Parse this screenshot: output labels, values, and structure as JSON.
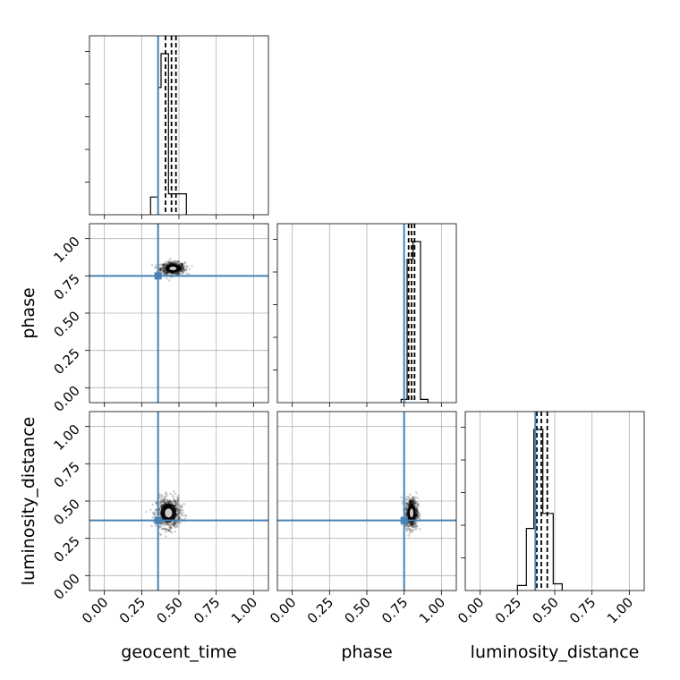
{
  "chart_data": {
    "type": "corner",
    "parameters": [
      "geocent_time",
      "phase",
      "luminosity_distance"
    ],
    "axis_range": [
      -0.1,
      1.1
    ],
    "tick_labels": [
      "0.00",
      "0.25",
      "0.50",
      "0.75",
      "1.00"
    ],
    "tick_values": [
      0.0,
      0.25,
      0.5,
      0.75,
      1.0
    ],
    "grid": true,
    "truth_color": "#4682b4",
    "truth_values": {
      "geocent_time": 0.36,
      "phase": 0.75,
      "luminosity_distance": 0.37
    },
    "histograms": {
      "geocent_time": {
        "bin_edges": [
          0.31,
          0.36,
          0.38,
          0.43,
          0.49,
          0.55
        ],
        "heights": [
          0.11,
          0.79,
          1.0,
          0.13,
          0.13
        ]
      },
      "phase": {
        "bin_edges": [
          0.73,
          0.77,
          0.81,
          0.86,
          0.91
        ],
        "heights": [
          0.02,
          0.89,
          1.0,
          0.02
        ]
      },
      "luminosity_distance": {
        "bin_edges": [
          0.25,
          0.31,
          0.36,
          0.42,
          0.49,
          0.55
        ],
        "heights": [
          0.03,
          0.37,
          0.96,
          0.46,
          0.04
        ]
      }
    },
    "quantiles": {
      "geocent_time": [
        0.41,
        0.45,
        0.48
      ],
      "phase": [
        0.78,
        0.8,
        0.82
      ],
      "luminosity_distance": [
        0.38,
        0.41,
        0.45
      ]
    },
    "scatter_2d": [
      {
        "x_param": "geocent_time",
        "y_param": "phase",
        "center": [
          0.46,
          0.8
        ],
        "spread": [
          0.04,
          0.02
        ]
      },
      {
        "x_param": "geocent_time",
        "y_param": "luminosity_distance",
        "center": [
          0.43,
          0.42
        ],
        "spread": [
          0.04,
          0.05
        ]
      },
      {
        "x_param": "phase",
        "y_param": "luminosity_distance",
        "center": [
          0.8,
          0.42
        ],
        "spread": [
          0.02,
          0.05
        ]
      }
    ]
  }
}
